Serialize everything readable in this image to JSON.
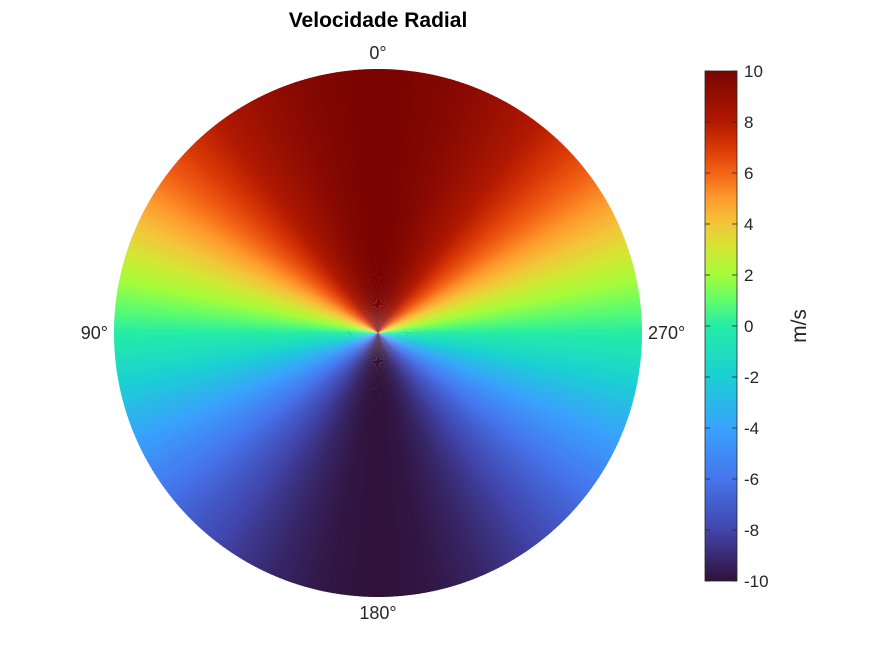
{
  "chart_data": {
    "type": "heatmap",
    "projection": "polar",
    "title": "Velocidade Radial",
    "angle_labels": [
      "0°",
      "90°",
      "180°",
      "270°"
    ],
    "angle_values_deg": [
      0,
      90,
      180,
      270
    ],
    "angle_direction": "counterclockwise",
    "zero_angle_location": "top",
    "value_function": "vmax * cos(azimuth)",
    "vmax": 10,
    "colorbar": {
      "label": "m/s",
      "limits": [
        -10,
        10
      ],
      "ticks": [
        -10,
        -8,
        -6,
        -4,
        -2,
        0,
        2,
        4,
        6,
        8,
        10
      ],
      "tick_labels": [
        "-10",
        "-8",
        "-6",
        "-4",
        "-2",
        "0",
        "2",
        "4",
        "6",
        "8",
        "10"
      ],
      "colormap": "turbo",
      "colormap_stops": [
        {
          "value": -10,
          "color": "#30123b"
        },
        {
          "value": -8,
          "color": "#4145ab"
        },
        {
          "value": -6,
          "color": "#4675ed"
        },
        {
          "value": -4,
          "color": "#39a2fc"
        },
        {
          "value": -2,
          "color": "#1bcfd4"
        },
        {
          "value": 0,
          "color": "#24eca6"
        },
        {
          "value": 1,
          "color": "#61fc6c"
        },
        {
          "value": 2,
          "color": "#a4fc3b"
        },
        {
          "value": 3,
          "color": "#d1e834"
        },
        {
          "value": 4,
          "color": "#f3c63a"
        },
        {
          "value": 5,
          "color": "#fe9b2d"
        },
        {
          "value": 6,
          "color": "#f36315"
        },
        {
          "value": 7,
          "color": "#d93806"
        },
        {
          "value": 8,
          "color": "#b11901"
        },
        {
          "value": 10,
          "color": "#7a0402"
        }
      ]
    },
    "grid": false
  }
}
